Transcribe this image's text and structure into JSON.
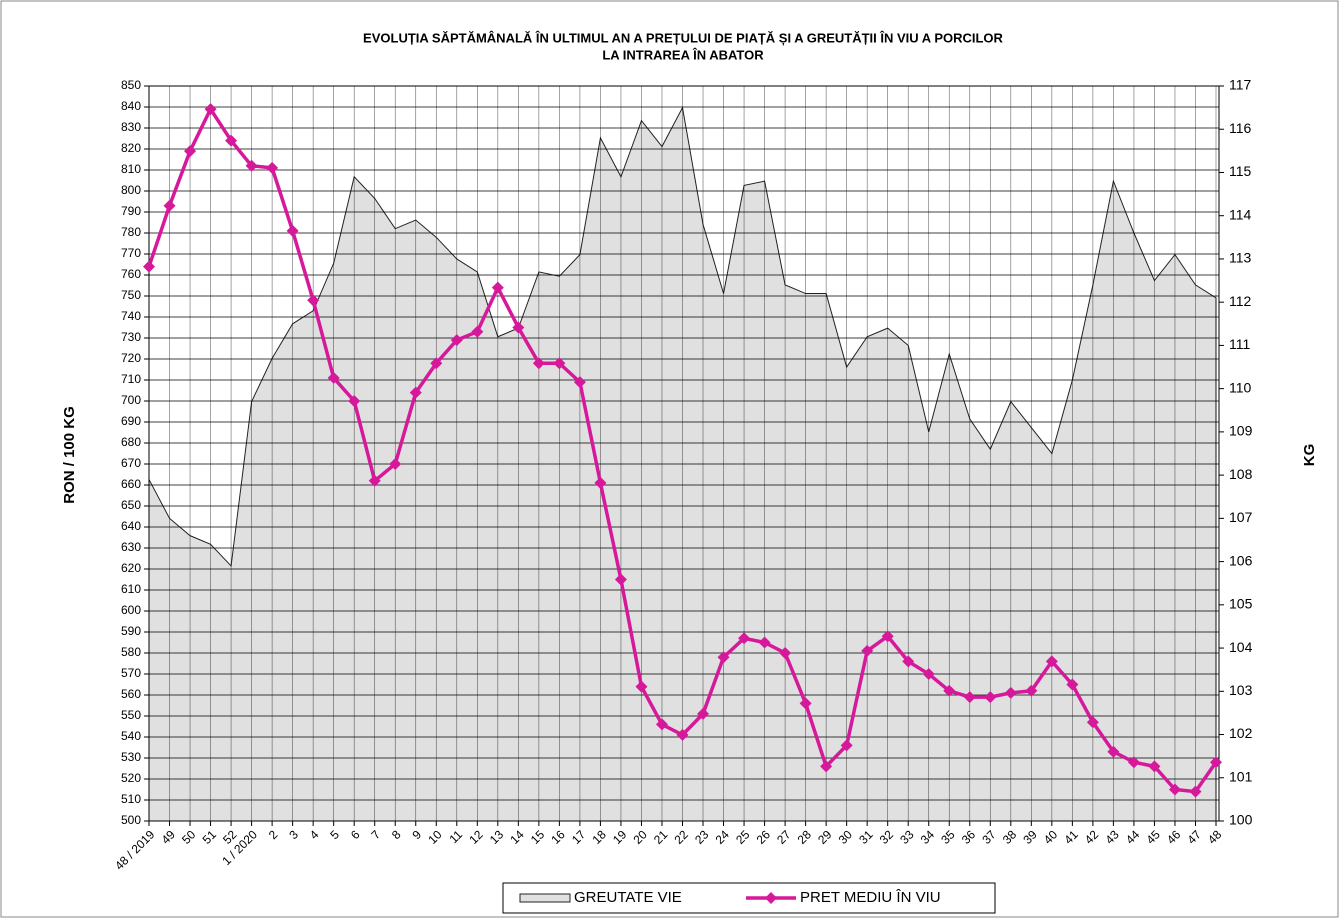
{
  "chart_data": {
    "type": "combo",
    "title": [
      "EVOLUȚIA SĂPTĂMÂNALĂ ÎN ULTIMUL  AN A PREȚULUI  DE PIAȚĂ ȘI A GREUTĂȚII  ÎN VIU A PORCILOR",
      "LA INTRAREA ÎN ABATOR"
    ],
    "y_label": "RON / 100 KG",
    "y2_label": "KG",
    "categories": [
      "48 / 2019",
      "49",
      "50",
      "51",
      "52",
      "1 / 2020",
      "2",
      "3",
      "4",
      "5",
      "6",
      "7",
      "8",
      "9",
      "10",
      "11",
      "12",
      "13",
      "14",
      "15",
      "16",
      "17",
      "18",
      "19",
      "20",
      "21",
      "22",
      "23",
      "24",
      "25",
      "26",
      "27",
      "28",
      "29",
      "30",
      "31",
      "32",
      "33",
      "34",
      "35",
      "36",
      "37",
      "38",
      "39",
      "40",
      "41",
      "42",
      "43",
      "44",
      "45",
      "46",
      "47",
      "48"
    ],
    "series": [
      {
        "name": "GREUTATE VIE",
        "type": "area",
        "axis": "y2",
        "color": "#e0e0e0",
        "values": [
          107.9,
          107.0,
          106.6,
          106.4,
          105.9,
          109.7,
          110.7,
          111.5,
          111.8,
          112.9,
          114.9,
          114.4,
          113.7,
          113.9,
          113.5,
          113.0,
          112.7,
          111.2,
          111.4,
          112.7,
          112.6,
          113.1,
          115.8,
          114.9,
          116.2,
          115.6,
          116.5,
          113.8,
          112.2,
          114.7,
          114.8,
          112.4,
          112.2,
          112.2,
          110.5,
          111.2,
          111.4,
          111.0,
          109.0,
          110.8,
          109.3,
          108.6,
          109.7,
          109.1,
          108.5,
          110.2,
          112.4,
          114.8,
          113.6,
          112.5,
          113.1,
          112.4,
          112.1
        ]
      },
      {
        "name": "PRET MEDIU ÎN VIU",
        "type": "line",
        "color": "#d6199b",
        "values": [
          764,
          793,
          819,
          839,
          824,
          812,
          811,
          781,
          748,
          711,
          700,
          662,
          670,
          704,
          718,
          729,
          733,
          754,
          735,
          718,
          718,
          709,
          661,
          615,
          564,
          546,
          541,
          551,
          578,
          587,
          585,
          580,
          556,
          526,
          536,
          581,
          588,
          576,
          570,
          562,
          559,
          559,
          561,
          562,
          576,
          565,
          547,
          533,
          528,
          526,
          515,
          514,
          528
        ]
      }
    ],
    "ylim": [
      500,
      850
    ],
    "yticks": [
      500,
      510,
      520,
      530,
      540,
      550,
      560,
      570,
      580,
      590,
      600,
      610,
      620,
      630,
      640,
      650,
      660,
      670,
      680,
      690,
      700,
      710,
      720,
      730,
      740,
      750,
      760,
      770,
      780,
      790,
      800,
      810,
      820,
      830,
      840,
      850
    ],
    "y2lim": [
      100,
      117
    ],
    "y2ticks": [
      100,
      101,
      102,
      103,
      104,
      105,
      106,
      107,
      108,
      109,
      110,
      111,
      112,
      113,
      114,
      115,
      116,
      117
    ],
    "grid": true,
    "legend": "bottom"
  }
}
